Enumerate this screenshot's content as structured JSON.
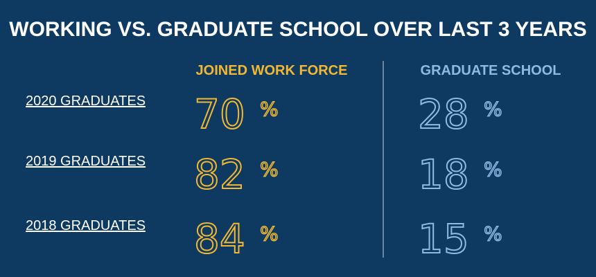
{
  "title": "WORKING VS. GRADUATE SCHOOL  OVER LAST 3 YEARS",
  "table": {
    "columns": [
      "JOINED WORK FORCE",
      "GRADUATE SCHOOL"
    ],
    "unit": "%",
    "rows": [
      {
        "label": "2020 GRADUATES",
        "values": [
          70,
          28
        ]
      },
      {
        "label": "2019 GRADUATES",
        "values": [
          82,
          18
        ]
      },
      {
        "label": "2018 GRADUATES",
        "values": [
          84,
          15
        ]
      }
    ]
  }
}
